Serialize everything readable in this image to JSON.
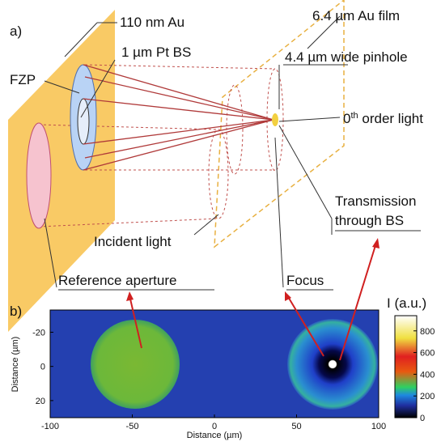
{
  "diagram": {
    "panel_label": "a)",
    "au_layer": "110 nm Au",
    "beam_stop": "1 µm Pt BS",
    "fzp": "FZP",
    "au_film": "6.4 µm Au film",
    "pinhole": "4.4 µm wide pinhole",
    "zero_order": {
      "base": "0",
      "sup": "th",
      "rest": " order light"
    },
    "transmission": [
      "Transmission",
      "through BS"
    ],
    "incident": "Incident light",
    "reference": "Reference aperture",
    "focus": "Focus"
  },
  "chart_data": {
    "type": "heatmap",
    "panel_label": "b)",
    "xlabel": "Distance (µm)",
    "ylabel": "Distance (µm)",
    "xlim": [
      -100,
      100
    ],
    "ylim": [
      -33,
      30
    ],
    "xticks": [
      -100,
      -50,
      0,
      50,
      100
    ],
    "yticks": [
      -20,
      0,
      20
    ],
    "colorbar": {
      "label": "I (a.u.)",
      "lim": [
        0,
        940
      ],
      "ticks": [
        0,
        200,
        400,
        600,
        800
      ]
    }
  }
}
